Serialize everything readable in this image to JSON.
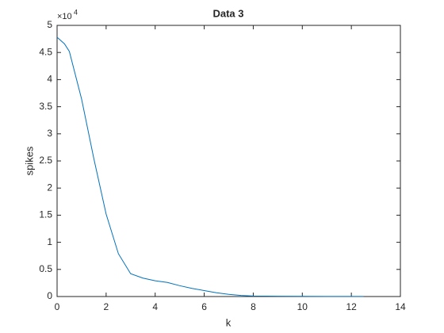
{
  "chart_data": {
    "type": "line",
    "title": "Data 3",
    "x_label": "k",
    "y_label": "spikes",
    "y_multiplier": {
      "base": "×10",
      "power": "4"
    },
    "x": [
      0,
      0.3,
      0.5,
      1,
      1.5,
      2,
      2.5,
      3,
      3.5,
      4,
      4.5,
      5,
      5.5,
      6,
      6.5,
      7,
      7.5,
      8,
      9,
      10,
      11,
      12,
      12.5
    ],
    "series": [
      {
        "name": "Data 3",
        "color": "#0072bd",
        "values": [
          4.78,
          4.66,
          4.52,
          3.64,
          2.54,
          1.52,
          0.79,
          0.42,
          0.34,
          0.29,
          0.26,
          0.2,
          0.15,
          0.11,
          0.07,
          0.04,
          0.02,
          0.01,
          0.005,
          0.003,
          0.002,
          0.001,
          0.001
        ]
      }
    ],
    "xlim": [
      0,
      14
    ],
    "xticks": [
      0,
      2,
      4,
      6,
      8,
      10,
      12,
      14
    ],
    "ylim": [
      0,
      5
    ],
    "yticks": [
      0,
      0.5,
      1,
      1.5,
      2,
      2.5,
      3,
      3.5,
      4,
      4.5,
      5
    ]
  }
}
